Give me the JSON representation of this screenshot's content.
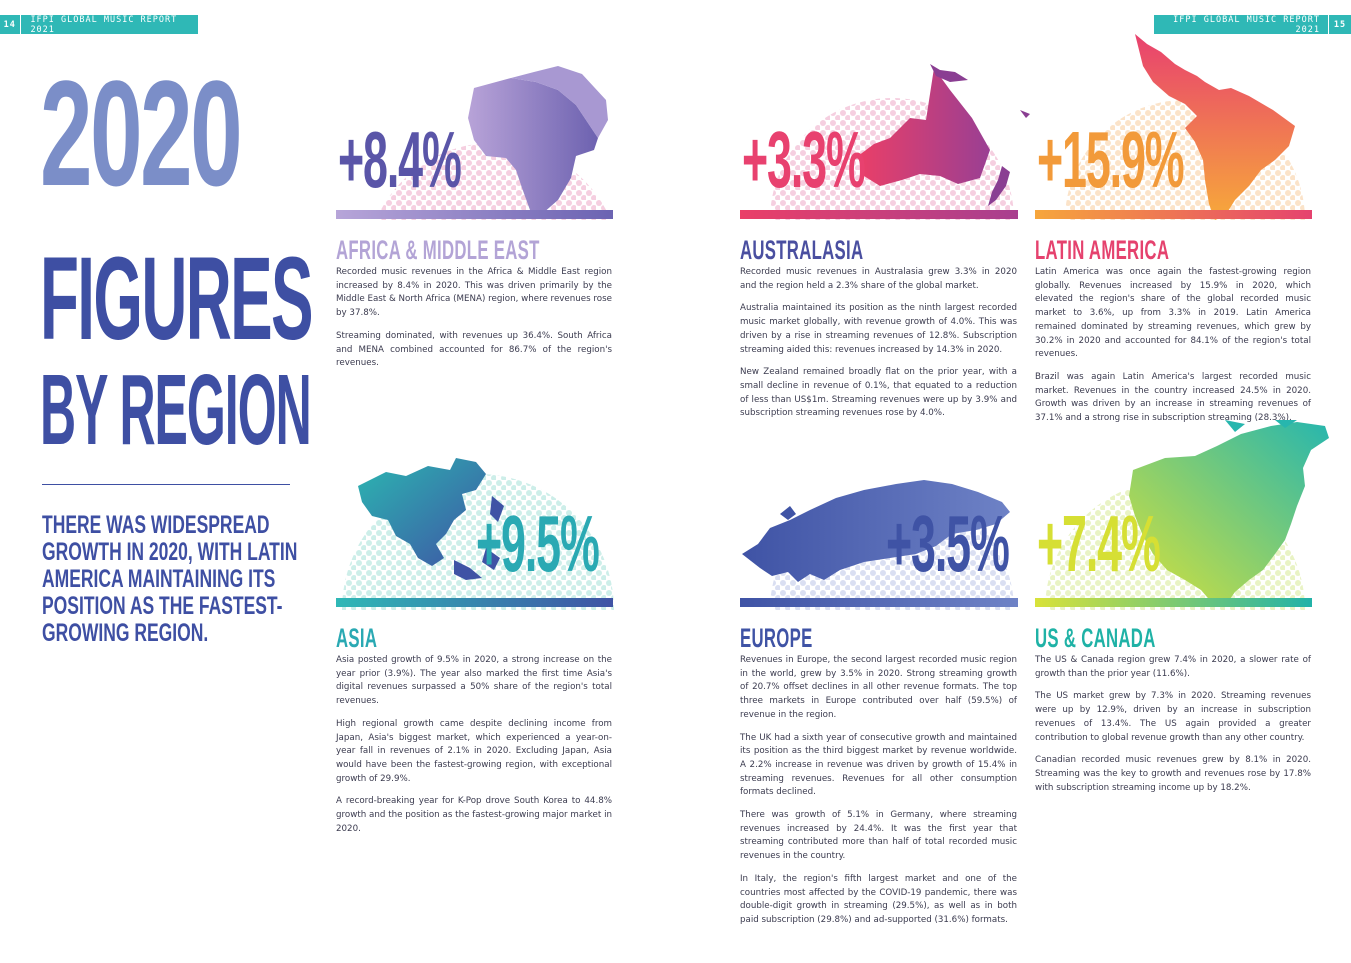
{
  "header": {
    "left_page": "14",
    "right_page": "15",
    "report_title": "IFPI GLOBAL MUSIC REPORT 2021"
  },
  "title": {
    "line1": "2020",
    "line2": "FIGURES",
    "line3": "BY REGION"
  },
  "intro": "THERE WAS WIDESPREAD GROWTH IN 2020, WITH LATIN AMERICA MAINTAINING ITS POSITION AS THE FASTEST-GROWING REGION.",
  "regions": {
    "africa": {
      "name": "AFRICA & MIDDLE EAST",
      "growth": "+8.4%",
      "color": "#8c7cc0",
      "paragraphs": [
        "Recorded music revenues in the Africa & Middle East region increased by 8.4% in 2020. This was driven primarily by the Middle East & North Africa (MENA) region, where revenues rose by 37.8%.",
        "Streaming dominated, with revenues up 36.4%. South Africa and MENA combined accounted for 86.7% of the region's revenues."
      ]
    },
    "australasia": {
      "name": "AUSTRALASIA",
      "growth": "+3.3%",
      "color": "#e8416f",
      "paragraphs": [
        "Recorded music revenues in Australasia grew 3.3% in 2020 and the region held a 2.3% share of the global market.",
        "Australia maintained its position as the ninth largest recorded music market globally, with revenue growth of 4.0%. This was driven by a rise in streaming revenues of 12.8%. Subscription streaming aided this: revenues increased by 14.3% in 2020.",
        "New Zealand remained broadly flat on the prior year, with a small decline in revenue of 0.1%, that equated to a reduction of less than US$1m. Streaming revenues were up by 3.9% and subscription streaming revenues rose by 4.0%."
      ]
    },
    "latin": {
      "name": "LATIN AMERICA",
      "growth": "+15.9%",
      "color": "#f29a3a",
      "paragraphs": [
        "Latin America was once again the fastest-growing region globally. Revenues increased by 15.9% in 2020, which elevated the region's share of the global recorded music market to 3.6%, up from 3.3% in 2019. Latin America remained dominated by streaming revenues, which grew by 30.2% in 2020 and accounted for 84.1% of the region's total revenues.",
        "Brazil was again Latin America's largest recorded music market. Revenues in the country increased 24.5% in 2020. Growth was driven by an increase in streaming revenues of 37.1% and a strong rise in subscription streaming (28.3%)."
      ]
    },
    "asia": {
      "name": "ASIA",
      "growth": "+9.5%",
      "color": "#2aa9b3",
      "paragraphs": [
        "Asia posted growth of 9.5% in 2020, a strong increase on the year prior (3.9%). The year also marked the first time Asia's digital revenues surpassed a 50% share of the region's total revenues.",
        "High regional growth came despite declining income from Japan, Asia's biggest market, which experienced a year-on-year fall in revenues of 2.1% in 2020. Excluding Japan, Asia would have been the fastest-growing region, with exceptional growth of 29.9%.",
        "A record-breaking year for K-Pop drove South Korea to 44.8% growth and the position as the fastest-growing major market in 2020."
      ]
    },
    "europe": {
      "name": "EUROPE",
      "growth": "+3.5%",
      "color": "#3f53a5",
      "paragraphs": [
        "Revenues in Europe, the second largest recorded music region in the world, grew by 3.5% in 2020. Strong streaming growth of 20.7% offset declines in all other revenue formats. The top three markets in Europe contributed over half (59.5%) of revenue in the region.",
        "The UK had a sixth year of consecutive growth and maintained its position as the third biggest market by revenue worldwide. A 2.2% increase in revenue was driven by growth of 15.4% in streaming revenues. Revenues for all other consumption formats declined.",
        "There was growth of 5.1% in Germany, where streaming revenues increased by 24.4%. It was the first year that streaming contributed more than half of total recorded music revenues in the country.",
        "In Italy, the region's fifth largest market and one of the countries most affected by the COVID-19 pandemic, there was double-digit growth in streaming (29.5%), as well as in both paid subscription (29.8%) and ad-supported (31.6%) formats."
      ]
    },
    "us": {
      "name": "US & CANADA",
      "growth": "+7.4%",
      "color": "#1fb2a6",
      "paragraphs": [
        "The US & Canada region grew 7.4% in 2020, a slower rate of growth than the prior year (11.6%).",
        "The US market grew by 7.3% in 2020. Streaming revenues were up by 12.9%, driven by an increase in subscription revenues of 13.4%. The US again provided a greater contribution to global revenue growth than any other country.",
        "Canadian recorded music revenues grew by 8.1% in 2020. Streaming was the key to growth and revenues rose by 17.8% with subscription streaming income up by 18.2%."
      ]
    }
  }
}
